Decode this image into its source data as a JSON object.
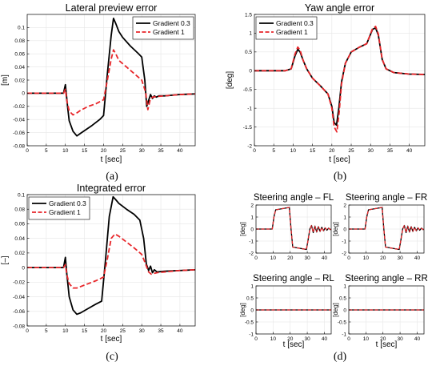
{
  "colors": {
    "series_a": "#000000",
    "series_b": "#e8262a",
    "grid": "#e6e6e6",
    "axes": "#000000"
  },
  "panel_labels": [
    "(a)",
    "(b)",
    "(c)",
    "(d)"
  ],
  "chart_data": [
    {
      "id": "a",
      "type": "line",
      "title": "Lateral preview error",
      "xlabel": "t [sec]",
      "ylabel": "[m]",
      "xlim": [
        0,
        44
      ],
      "ylim": [
        -0.08,
        0.12
      ],
      "xticks": [
        0,
        5,
        10,
        15,
        20,
        25,
        30,
        35,
        40
      ],
      "yticks": [
        -0.08,
        -0.06,
        -0.04,
        -0.02,
        0,
        0.02,
        0.04,
        0.06,
        0.08,
        0.1
      ],
      "ytick_labels": [
        "-0.08",
        "-0.06",
        "-0.04",
        "-0.02",
        "0",
        "0.02",
        "0.04",
        "0.06",
        "0.08",
        "0.1"
      ],
      "grid": true,
      "legend": "top-right",
      "series": [
        {
          "name": "Gradient 0.3",
          "style": "solid",
          "x": [
            0,
            9.5,
            10,
            10.3,
            10.6,
            11,
            12,
            13,
            14,
            15,
            17,
            19,
            20,
            21,
            22,
            22.6,
            23.2,
            24,
            25,
            27,
            29,
            30,
            30.8,
            31.3,
            31.8,
            32.3,
            32.8,
            33.3,
            33.8,
            34.5,
            36,
            40,
            44
          ],
          "y": [
            0,
            0,
            0.013,
            -0.004,
            -0.022,
            -0.042,
            -0.058,
            -0.065,
            -0.061,
            -0.057,
            -0.049,
            -0.04,
            -0.034,
            0.03,
            0.088,
            0.114,
            0.106,
            0.094,
            0.085,
            0.072,
            0.061,
            0.055,
            0.02,
            -0.02,
            -0.011,
            -0.002,
            -0.008,
            -0.004,
            -0.006,
            -0.004,
            -0.004,
            -0.002,
            -0.001
          ]
        },
        {
          "name": "Gradient 1",
          "style": "dashed",
          "x": [
            0,
            9.5,
            10,
            10.4,
            11,
            12,
            13,
            14,
            16,
            18,
            20,
            21,
            22,
            22.6,
            23.2,
            24,
            26,
            28,
            30,
            31,
            31.6,
            32.2,
            32.8,
            34,
            36,
            40,
            44
          ],
          "y": [
            0,
            0,
            0.006,
            -0.012,
            -0.027,
            -0.033,
            -0.03,
            -0.026,
            -0.02,
            -0.016,
            -0.01,
            0.02,
            0.052,
            0.066,
            0.06,
            0.05,
            0.04,
            0.03,
            0.02,
            0.002,
            -0.025,
            -0.01,
            -0.006,
            -0.005,
            -0.004,
            -0.002,
            -0.001
          ]
        }
      ]
    },
    {
      "id": "b",
      "type": "line",
      "title": "Yaw angle error",
      "xlabel": "t [sec]",
      "ylabel": "[deg]",
      "xlim": [
        0,
        44
      ],
      "ylim": [
        -2,
        1.5
      ],
      "xticks": [
        0,
        5,
        10,
        15,
        20,
        25,
        30,
        35,
        40
      ],
      "yticks": [
        -2,
        -1.5,
        -1,
        -0.5,
        0,
        0.5,
        1,
        1.5
      ],
      "ytick_labels": [
        "-2",
        "-1.5",
        "-1",
        "-0.5",
        "0",
        "0.5",
        "1",
        "1.5"
      ],
      "grid": true,
      "legend": "top-left",
      "series": [
        {
          "name": "Gradient 0.3",
          "style": "solid",
          "x": [
            0,
            8,
            9.5,
            10.5,
            11.2,
            11.8,
            12.5,
            13.5,
            15,
            17,
            19,
            20,
            20.6,
            21.2,
            21.8,
            22.5,
            23.5,
            25,
            27,
            29,
            30.5,
            31.3,
            32,
            33,
            34,
            36,
            40,
            44
          ],
          "y": [
            0,
            0,
            0.05,
            0.4,
            0.57,
            0.5,
            0.3,
            0.05,
            -0.2,
            -0.4,
            -0.62,
            -0.95,
            -1.38,
            -1.45,
            -1.0,
            -0.3,
            0.2,
            0.5,
            0.62,
            0.72,
            1.1,
            1.14,
            0.95,
            0.3,
            0.05,
            -0.05,
            -0.09,
            -0.1
          ]
        },
        {
          "name": "Gradient 1",
          "style": "dashed",
          "x": [
            0,
            8,
            9.5,
            10.5,
            11.2,
            11.8,
            12.5,
            13.5,
            15,
            17,
            19,
            20,
            20.6,
            21.3,
            21.9,
            22.5,
            23.5,
            25,
            27,
            29,
            30.5,
            31.3,
            32,
            33,
            34,
            36,
            40,
            44
          ],
          "y": [
            0,
            0,
            0.05,
            0.45,
            0.63,
            0.55,
            0.3,
            0.05,
            -0.2,
            -0.4,
            -0.62,
            -1.0,
            -1.5,
            -1.63,
            -1.1,
            -0.35,
            0.2,
            0.5,
            0.62,
            0.72,
            1.12,
            1.18,
            0.98,
            0.3,
            0.05,
            -0.05,
            -0.09,
            -0.1
          ]
        }
      ]
    },
    {
      "id": "c",
      "type": "line",
      "title": "Integrated error",
      "xlabel": "t [sec]",
      "ylabel": "[–]",
      "xlim": [
        0,
        44
      ],
      "ylim": [
        -0.08,
        0.1
      ],
      "xticks": [
        0,
        5,
        10,
        15,
        20,
        25,
        30,
        35,
        40
      ],
      "yticks": [
        -0.08,
        -0.06,
        -0.04,
        -0.02,
        0,
        0.02,
        0.04,
        0.06,
        0.08,
        0.1
      ],
      "ytick_labels": [
        "-0.08",
        "-0.06",
        "-0.04",
        "-0.02",
        "0",
        "0.02",
        "0.04",
        "0.06",
        "0.08",
        "0.1"
      ],
      "grid": true,
      "legend": "top-left",
      "series": [
        {
          "name": "Gradient 0.3",
          "style": "solid",
          "x": [
            0,
            9.5,
            10,
            10.4,
            11,
            12,
            13,
            14,
            16,
            18,
            19.5,
            20.5,
            21.5,
            22.5,
            23.2,
            24,
            26,
            28,
            29.5,
            30.5,
            31.2,
            31.8,
            32.3,
            32.8,
            33.3,
            34,
            36,
            40,
            44
          ],
          "y": [
            0,
            0,
            0.014,
            -0.01,
            -0.04,
            -0.058,
            -0.064,
            -0.062,
            -0.056,
            -0.05,
            -0.046,
            0.01,
            0.07,
            0.097,
            0.093,
            0.088,
            0.08,
            0.073,
            0.065,
            0.04,
            0.005,
            -0.004,
            0.002,
            -0.007,
            -0.003,
            -0.006,
            -0.005,
            -0.004,
            -0.003
          ]
        },
        {
          "name": "Gradient 1",
          "style": "dashed",
          "x": [
            0,
            9.5,
            10,
            10.4,
            11,
            12,
            13,
            14,
            16,
            18,
            20,
            21,
            22,
            23,
            24,
            26,
            28,
            30,
            31,
            31.8,
            32.5,
            34,
            36,
            40,
            44
          ],
          "y": [
            0,
            0,
            0.004,
            -0.01,
            -0.022,
            -0.028,
            -0.028,
            -0.026,
            -0.022,
            -0.018,
            -0.013,
            0.012,
            0.04,
            0.046,
            0.043,
            0.035,
            0.027,
            0.018,
            0.005,
            -0.006,
            -0.009,
            -0.007,
            -0.006,
            -0.004,
            -0.003
          ]
        }
      ]
    },
    {
      "id": "d-fl",
      "type": "line",
      "title": "Steering angle – FL",
      "xlabel": "",
      "ylabel": "[deg]",
      "xlim": [
        0,
        44
      ],
      "ylim": [
        -2,
        2
      ],
      "xticks": [
        0,
        10,
        20,
        30,
        40
      ],
      "yticks": [
        -2,
        -1,
        0,
        1,
        2
      ],
      "ytick_labels": [
        "-2",
        "-1",
        "0",
        "1",
        "2"
      ],
      "grid": true,
      "series": [
        {
          "name": "",
          "style": "solid",
          "x": [
            0,
            9.5,
            10.5,
            11.5,
            19.5,
            20.5,
            21.5,
            29.5,
            30.5,
            31.5,
            32.5,
            33.5,
            34.5,
            35.5,
            36.5,
            37.5,
            38.5,
            39.5,
            40.5,
            41.5,
            42.5,
            43.5,
            44
          ],
          "y": [
            0,
            0,
            1.0,
            1.6,
            1.8,
            0.0,
            -1.5,
            -1.7,
            -0.9,
            0.0,
            0.3,
            -0.3,
            0.25,
            -0.25,
            0.2,
            -0.2,
            0.15,
            -0.15,
            0.1,
            -0.1,
            0.08,
            -0.05,
            0
          ]
        },
        {
          "name": "",
          "style": "dashed",
          "x": [
            0,
            9.5,
            10.5,
            11.5,
            19.5,
            20.5,
            21.5,
            29.5,
            30.5,
            31.5,
            32.5,
            33.5,
            34.5,
            35.5,
            36.5,
            37.5,
            38.5,
            39.5,
            40.5,
            41.5,
            42.5,
            43.5,
            44
          ],
          "y": [
            0,
            0,
            1.0,
            1.6,
            1.8,
            0.0,
            -1.5,
            -1.7,
            -0.9,
            0.0,
            0.28,
            -0.28,
            0.22,
            -0.22,
            0.18,
            -0.18,
            0.13,
            -0.13,
            0.1,
            -0.08,
            0.06,
            -0.04,
            0
          ]
        }
      ]
    },
    {
      "id": "d-fr",
      "type": "line",
      "title": "Steering angle – FR",
      "xlabel": "",
      "ylabel": "[deg]",
      "xlim": [
        0,
        44
      ],
      "ylim": [
        -2,
        2
      ],
      "xticks": [
        0,
        10,
        20,
        30,
        40
      ],
      "yticks": [
        -2,
        -1,
        0,
        1,
        2
      ],
      "ytick_labels": [
        "-2",
        "-1",
        "0",
        "1",
        "2"
      ],
      "grid": true,
      "series": [
        {
          "name": "",
          "style": "solid",
          "x": [
            0,
            9.5,
            10.5,
            11.5,
            19.5,
            20.5,
            21.5,
            29.5,
            30.5,
            31.5,
            32.5,
            33.5,
            34.5,
            35.5,
            36.5,
            37.5,
            38.5,
            39.5,
            40.5,
            41.5,
            42.5,
            43.5,
            44
          ],
          "y": [
            0,
            0,
            1.0,
            1.6,
            1.8,
            0.0,
            -1.5,
            -1.7,
            -0.9,
            0.0,
            0.3,
            -0.3,
            0.25,
            -0.25,
            0.2,
            -0.2,
            0.15,
            -0.15,
            0.1,
            -0.1,
            0.08,
            -0.05,
            0
          ]
        },
        {
          "name": "",
          "style": "dashed",
          "x": [
            0,
            9.5,
            10.5,
            11.5,
            19.5,
            20.5,
            21.5,
            29.5,
            30.5,
            31.5,
            32.5,
            33.5,
            34.5,
            35.5,
            36.5,
            37.5,
            38.5,
            39.5,
            40.5,
            41.5,
            42.5,
            43.5,
            44
          ],
          "y": [
            0,
            0,
            1.0,
            1.6,
            1.8,
            0.0,
            -1.5,
            -1.7,
            -0.9,
            0.0,
            0.28,
            -0.28,
            0.22,
            -0.22,
            0.18,
            -0.18,
            0.13,
            -0.13,
            0.1,
            -0.08,
            0.06,
            -0.04,
            0
          ]
        }
      ]
    },
    {
      "id": "d-rl",
      "type": "line",
      "title": "Steering angle – RL",
      "xlabel": "t [sec]",
      "ylabel": "[deg]",
      "xlim": [
        0,
        44
      ],
      "ylim": [
        -1,
        1
      ],
      "xticks": [
        0,
        10,
        20,
        30,
        40
      ],
      "yticks": [
        -1,
        -0.5,
        0,
        0.5,
        1
      ],
      "ytick_labels": [
        "-1",
        "-0.5",
        "0",
        "0.5",
        "1"
      ],
      "grid": true,
      "series": [
        {
          "name": "",
          "style": "solid",
          "x": [
            0,
            44
          ],
          "y": [
            0,
            0
          ]
        },
        {
          "name": "",
          "style": "dashed",
          "x": [
            0,
            44
          ],
          "y": [
            0,
            0
          ]
        }
      ]
    },
    {
      "id": "d-rr",
      "type": "line",
      "title": "Steering angle – RR",
      "xlabel": "t [sec]",
      "ylabel": "[deg]",
      "xlim": [
        0,
        44
      ],
      "ylim": [
        -1,
        1
      ],
      "xticks": [
        0,
        10,
        20,
        30,
        40
      ],
      "yticks": [
        -1,
        -0.5,
        0,
        0.5,
        1
      ],
      "ytick_labels": [
        "-1",
        "-0.5",
        "0",
        "0.5",
        "1"
      ],
      "grid": true,
      "series": [
        {
          "name": "",
          "style": "solid",
          "x": [
            0,
            44
          ],
          "y": [
            0,
            0
          ]
        },
        {
          "name": "",
          "style": "dashed",
          "x": [
            0,
            44
          ],
          "y": [
            0,
            0
          ]
        }
      ]
    }
  ]
}
